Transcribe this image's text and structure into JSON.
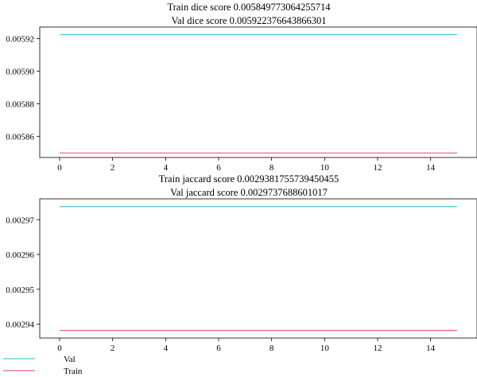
{
  "colors": {
    "val": "#4fc9d6",
    "train": "#e5607f"
  },
  "legend": {
    "placement": "bottom-left",
    "items": [
      {
        "label": "Val",
        "color": "#4fc9d6"
      },
      {
        "label": "Train",
        "color": "#e5607f"
      }
    ]
  },
  "chart_data": [
    {
      "type": "line",
      "title_lines": [
        "Train dice score 0.005849773064255714",
        "Val dice score 0.005922376643866301"
      ],
      "xlabel": "",
      "ylabel": "",
      "xlim": [
        -0.75,
        15.75
      ],
      "ylim": [
        0.005847,
        0.005927
      ],
      "xticks": [
        0,
        2,
        4,
        6,
        8,
        10,
        12,
        14
      ],
      "xtick_labels": [
        "0",
        "2",
        "4",
        "6",
        "8",
        "10",
        "12",
        "14"
      ],
      "yticks": [
        0.00586,
        0.00588,
        0.0059,
        0.00592
      ],
      "ytick_labels": [
        "0.00586",
        "0.00588",
        "0.00590",
        "0.00592"
      ],
      "grid": false,
      "series": [
        {
          "name": "Val",
          "color": "#4fc9d6",
          "x": [
            0,
            15
          ],
          "y": [
            0.005922376643866301,
            0.005922376643866301
          ]
        },
        {
          "name": "Train",
          "color": "#e5607f",
          "x": [
            0,
            15
          ],
          "y": [
            0.005849773064255714,
            0.005849773064255714
          ]
        }
      ]
    },
    {
      "type": "line",
      "title_lines": [
        "Train jaccard score 0.0029381755739450455",
        "Val jaccard score 0.0029737688601017"
      ],
      "xlabel": "",
      "ylabel": "",
      "xlim": [
        -0.75,
        15.75
      ],
      "ylim": [
        0.002936,
        0.002976
      ],
      "xticks": [
        0,
        2,
        4,
        6,
        8,
        10,
        12,
        14
      ],
      "xtick_labels": [
        "0",
        "2",
        "4",
        "6",
        "8",
        "10",
        "12",
        "14"
      ],
      "yticks": [
        0.00294,
        0.00295,
        0.00296,
        0.00297
      ],
      "ytick_labels": [
        "0.00294",
        "0.00295",
        "0.00296",
        "0.00297"
      ],
      "grid": false,
      "series": [
        {
          "name": "Val",
          "color": "#4fc9d6",
          "x": [
            0,
            15
          ],
          "y": [
            0.0029737688601017,
            0.0029737688601017
          ]
        },
        {
          "name": "Train",
          "color": "#e5607f",
          "x": [
            0,
            15
          ],
          "y": [
            0.0029381755739450455,
            0.0029381755739450455
          ]
        }
      ]
    }
  ]
}
